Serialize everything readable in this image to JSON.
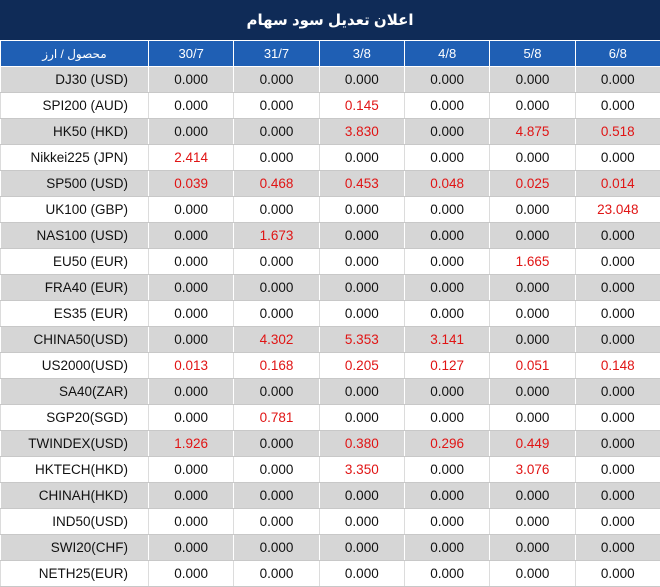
{
  "title": "اعلان تعديل سود سهام",
  "header_label": "محصول / ارز",
  "dates": [
    "30/7",
    "31/7",
    "3/8",
    "4/8",
    "5/8",
    "6/8"
  ],
  "colors": {
    "title_bg": "#0f2b57",
    "header_bg": "#1f5fb4",
    "highlight": "#e01414",
    "row_alt": "#d6d6d6"
  },
  "rows": [
    {
      "symbol": "DJ30 (USD)",
      "values": [
        "0.000",
        "0.000",
        "0.000",
        "0.000",
        "0.000",
        "0.000"
      ]
    },
    {
      "symbol": "SPI200 (AUD)",
      "values": [
        "0.000",
        "0.000",
        "0.145",
        "0.000",
        "0.000",
        "0.000"
      ]
    },
    {
      "symbol": "HK50 (HKD)",
      "values": [
        "0.000",
        "0.000",
        "3.830",
        "0.000",
        "4.875",
        "0.518"
      ]
    },
    {
      "symbol": "Nikkei225 (JPN)",
      "values": [
        "2.414",
        "0.000",
        "0.000",
        "0.000",
        "0.000",
        "0.000"
      ]
    },
    {
      "symbol": "SP500 (USD)",
      "values": [
        "0.039",
        "0.468",
        "0.453",
        "0.048",
        "0.025",
        "0.014"
      ]
    },
    {
      "symbol": "UK100 (GBP)",
      "values": [
        "0.000",
        "0.000",
        "0.000",
        "0.000",
        "0.000",
        "23.048"
      ]
    },
    {
      "symbol": "NAS100 (USD)",
      "values": [
        "0.000",
        "1.673",
        "0.000",
        "0.000",
        "0.000",
        "0.000"
      ]
    },
    {
      "symbol": "EU50 (EUR)",
      "values": [
        "0.000",
        "0.000",
        "0.000",
        "0.000",
        "1.665",
        "0.000"
      ]
    },
    {
      "symbol": "FRA40 (EUR)",
      "values": [
        "0.000",
        "0.000",
        "0.000",
        "0.000",
        "0.000",
        "0.000"
      ]
    },
    {
      "symbol": "ES35 (EUR)",
      "values": [
        "0.000",
        "0.000",
        "0.000",
        "0.000",
        "0.000",
        "0.000"
      ]
    },
    {
      "symbol": "CHINA50(USD)",
      "values": [
        "0.000",
        "4.302",
        "5.353",
        "3.141",
        "0.000",
        "0.000"
      ]
    },
    {
      "symbol": "US2000(USD)",
      "values": [
        "0.013",
        "0.168",
        "0.205",
        "0.127",
        "0.051",
        "0.148"
      ]
    },
    {
      "symbol": "SA40(ZAR)",
      "values": [
        "0.000",
        "0.000",
        "0.000",
        "0.000",
        "0.000",
        "0.000"
      ]
    },
    {
      "symbol": "SGP20(SGD)",
      "values": [
        "0.000",
        "0.781",
        "0.000",
        "0.000",
        "0.000",
        "0.000"
      ]
    },
    {
      "symbol": "TWINDEX(USD)",
      "values": [
        "1.926",
        "0.000",
        "0.380",
        "0.296",
        "0.449",
        "0.000"
      ]
    },
    {
      "symbol": "HKTECH(HKD)",
      "values": [
        "0.000",
        "0.000",
        "3.350",
        "0.000",
        "3.076",
        "0.000"
      ]
    },
    {
      "symbol": "CHINAH(HKD)",
      "values": [
        "0.000",
        "0.000",
        "0.000",
        "0.000",
        "0.000",
        "0.000"
      ]
    },
    {
      "symbol": "IND50(USD)",
      "values": [
        "0.000",
        "0.000",
        "0.000",
        "0.000",
        "0.000",
        "0.000"
      ]
    },
    {
      "symbol": "SWI20(CHF)",
      "values": [
        "0.000",
        "0.000",
        "0.000",
        "0.000",
        "0.000",
        "0.000"
      ]
    },
    {
      "symbol": "NETH25(EUR)",
      "values": [
        "0.000",
        "0.000",
        "0.000",
        "0.000",
        "0.000",
        "0.000"
      ]
    }
  ]
}
